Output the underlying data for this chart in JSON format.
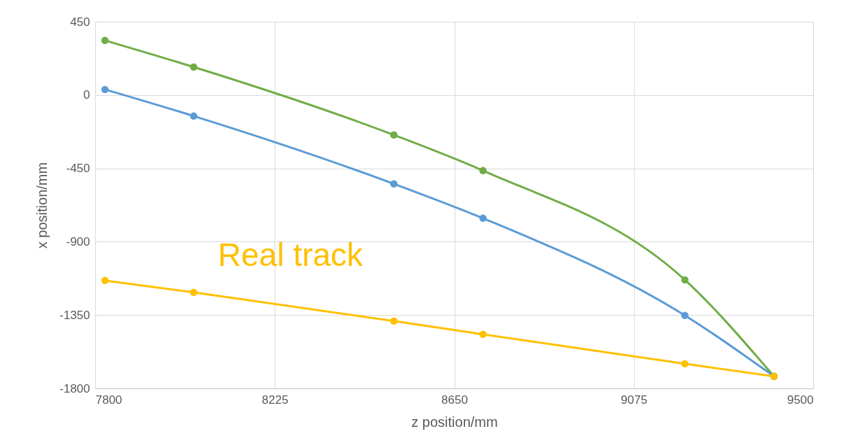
{
  "chart_data": {
    "type": "line",
    "xlabel": "z position/mm",
    "ylabel": "x position/mm",
    "x": [
      7823,
      8033,
      8507,
      8718,
      9196,
      9407
    ],
    "series": [
      {
        "color": "#70ad47",
        "values": [
          335,
          172,
          -245,
          -464,
          -1134,
          -1726
        ]
      },
      {
        "color": "#5b9bd5",
        "values": [
          34,
          -129,
          -545,
          -756,
          -1352,
          -1726
        ]
      },
      {
        "color": "#ffc000",
        "values": [
          -1138,
          -1211,
          -1387,
          -1468,
          -1649,
          -1726
        ]
      }
    ],
    "xlim": [
      7800,
      9500
    ],
    "xticks": [
      7800,
      8225,
      8650,
      9075,
      9500
    ],
    "ylim": [
      -1800,
      450
    ],
    "yticks": [
      -1800,
      -1350,
      -900,
      -450,
      0,
      450
    ],
    "grid": true,
    "marker": "circle",
    "line_style": "solid",
    "annotations": [
      "Real track"
    ]
  }
}
